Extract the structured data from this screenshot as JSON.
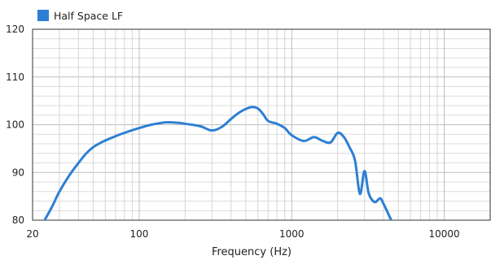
{
  "chart_data": {
    "type": "line",
    "title": "",
    "xlabel": "Frequency (Hz)",
    "ylabel": "",
    "x_scale": "log",
    "xlim": [
      20,
      20000
    ],
    "ylim": [
      80,
      120
    ],
    "grid": true,
    "legend": {
      "position": "top-left",
      "entries": [
        "Half Space LF"
      ]
    },
    "x_tick_labels": [
      "20",
      "100",
      "1000",
      "10000"
    ],
    "x_ticks": [
      20,
      100,
      1000,
      10000
    ],
    "y_ticks": [
      80,
      90,
      100,
      110,
      120
    ],
    "series": [
      {
        "name": "Half Space LF",
        "color": "#2d7fd4",
        "x": [
          24,
          27,
          30,
          35,
          40,
          45,
          50,
          55,
          60,
          70,
          80,
          100,
          120,
          150,
          180,
          200,
          250,
          300,
          350,
          400,
          450,
          500,
          550,
          600,
          650,
          700,
          800,
          900,
          1000,
          1200,
          1400,
          1600,
          1800,
          2000,
          2200,
          2400,
          2600,
          2800,
          3000,
          3200,
          3500,
          3800,
          4000,
          4200,
          4500,
          4700
        ],
        "y": [
          80,
          83,
          86,
          89.5,
          92,
          94,
          95.3,
          96.1,
          96.7,
          97.6,
          98.3,
          99.3,
          100,
          100.5,
          100.4,
          100.2,
          99.7,
          98.8,
          99.6,
          101.2,
          102.5,
          103.3,
          103.7,
          103.4,
          102.2,
          100.8,
          100.2,
          99.3,
          97.8,
          96.6,
          97.4,
          96.6,
          96.3,
          98.3,
          97.4,
          95.2,
          92.5,
          85.5,
          90.3,
          85.6,
          83.8,
          84.6,
          83.4,
          82.0,
          80.0,
          79.5
        ]
      }
    ]
  }
}
